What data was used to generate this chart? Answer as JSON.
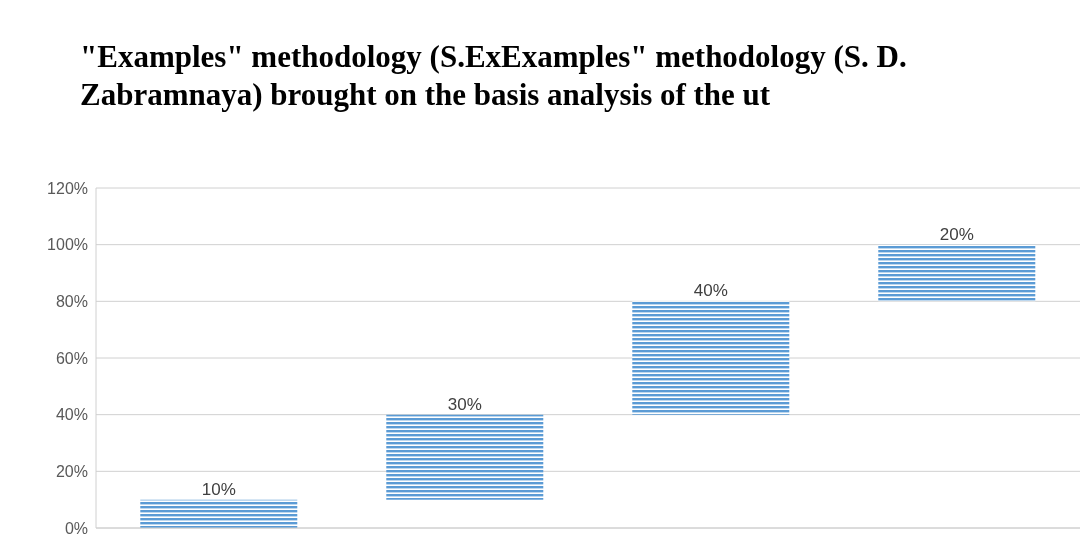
{
  "chart_data": {
    "type": "bar",
    "title": "\"Examples\" methodology (S.ExExamples\" methodology (S. D. Zabramnaya) brought on the basis analysis of the ut",
    "categories": [
      null,
      null,
      null,
      null
    ],
    "values": [
      10,
      30,
      40,
      20
    ],
    "base": [
      0,
      10,
      40,
      80
    ],
    "value_labels": [
      "10%",
      "30%",
      "40%",
      "20%"
    ],
    "color": "#5b9bd5",
    "ylim": [
      0,
      120
    ],
    "yticks": [
      {
        "value": 0,
        "label": "0%"
      },
      {
        "value": 20,
        "label": "20%"
      },
      {
        "value": 40,
        "label": "40%"
      },
      {
        "value": 60,
        "label": "60%"
      },
      {
        "value": 80,
        "label": "80%"
      },
      {
        "value": 100,
        "label": "100%"
      },
      {
        "value": 120,
        "label": "120%"
      }
    ],
    "grid": "y"
  }
}
